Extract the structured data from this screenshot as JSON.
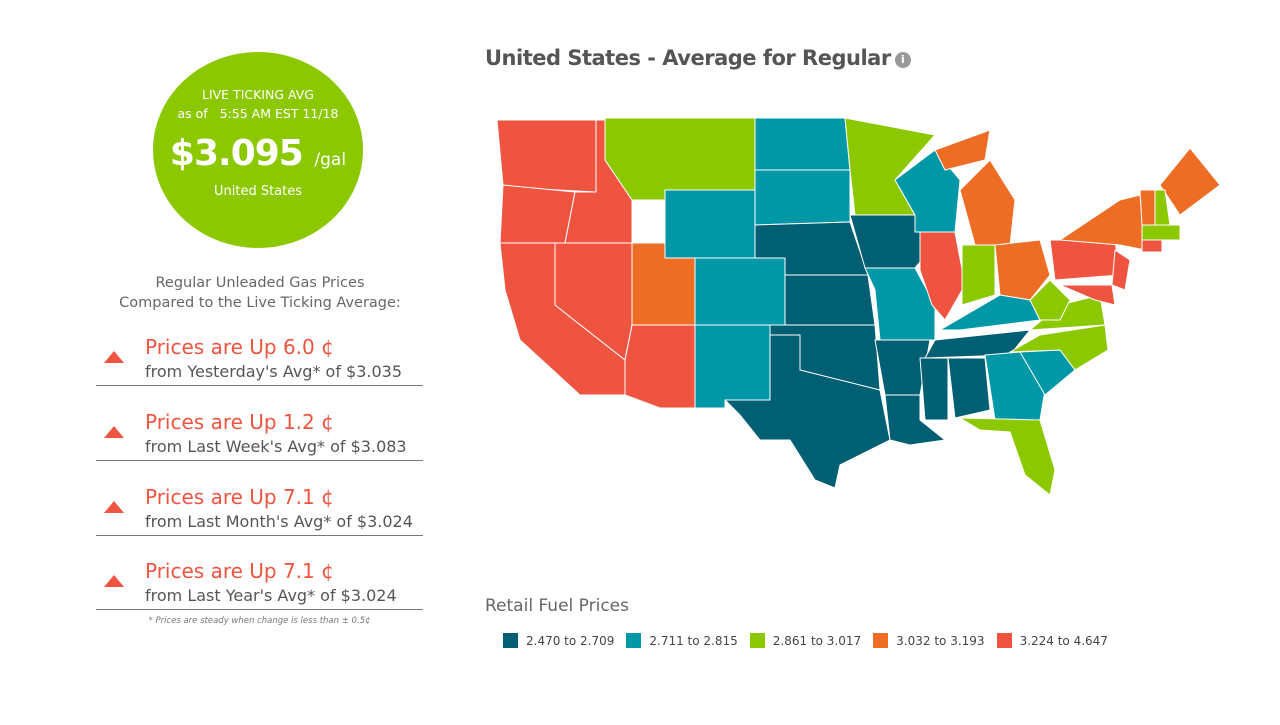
{
  "live": {
    "label": "LIVE TICKING AVG",
    "as_of_prefix": "as of",
    "as_of": "5:55 AM EST 11/18",
    "price": "$3.095",
    "unit": "/gal",
    "region": "United States"
  },
  "compare_heading": [
    "Regular Unleaded Gas Prices",
    "Compared to the Live Ticking Average:"
  ],
  "comparisons": [
    {
      "change": "Prices are Up 6.0 ¢",
      "from": "from Yesterday's Avg* of $3.035",
      "direction": "up"
    },
    {
      "change": "Prices are Up 1.2 ¢",
      "from": "from Last Week's Avg* of $3.083",
      "direction": "up"
    },
    {
      "change": "Prices are Up 7.1 ¢",
      "from": "from Last Month's Avg* of $3.024",
      "direction": "up"
    },
    {
      "change": "Prices are Up 7.1 ¢",
      "from": "from Last Year's Avg* of $3.024",
      "direction": "up"
    }
  ],
  "footnote": "* Prices are steady when change is less than ± 0.5¢",
  "map": {
    "title": "United States - Average for Regular",
    "info_icon": "info-icon"
  },
  "legend": {
    "title": "Retail Fuel Prices",
    "items": [
      {
        "label": "2.470 to 2.709",
        "color": "#005f73"
      },
      {
        "label": "2.711 to 2.815",
        "color": "#0097a7"
      },
      {
        "label": "2.861 to 3.017",
        "color": "#8cc800"
      },
      {
        "label": "3.032 to 3.193",
        "color": "#ee6d25"
      },
      {
        "label": "3.224 to 4.647",
        "color": "#ef5440"
      }
    ]
  }
}
